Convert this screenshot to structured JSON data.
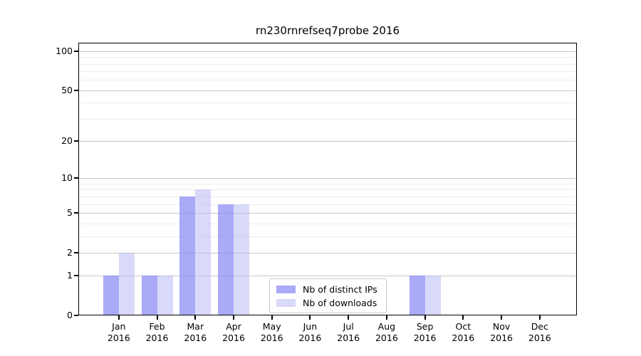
{
  "chart_data": {
    "type": "bar",
    "title": "rn230rnrefseq7probe 2016",
    "categories": [
      "Jan 2016",
      "Feb 2016",
      "Mar 2016",
      "Apr 2016",
      "May 2016",
      "Jun 2016",
      "Jul 2016",
      "Aug 2016",
      "Sep 2016",
      "Oct 2016",
      "Nov 2016",
      "Dec 2016"
    ],
    "series": [
      {
        "name": "Nb of distinct IPs",
        "key": "distinct-ips",
        "color": "#aaaaf8",
        "fill": "rgba(134,134,245,0.7)",
        "values": [
          1,
          1,
          7,
          6,
          0,
          0,
          0,
          0,
          1,
          0,
          0,
          0
        ]
      },
      {
        "name": "Nb of downloads",
        "key": "downloads",
        "color": "#d9d9fa",
        "fill": "rgba(179,179,245,0.5)",
        "values": [
          2,
          1,
          8,
          6,
          0,
          0,
          0,
          0,
          1,
          0,
          0,
          0
        ]
      }
    ],
    "yscale": "log1p",
    "ylim": [
      0,
      116
    ],
    "y_axis": {
      "major_ticks": [
        0,
        1,
        2,
        5,
        10,
        20,
        50,
        100
      ],
      "minor_gridlines": [
        3,
        4,
        6,
        7,
        8,
        9,
        30,
        40,
        60,
        70,
        80,
        90
      ]
    },
    "grid": {
      "on": true,
      "major_color": "#c8c8c8",
      "minor_color": "#ececec"
    },
    "legend_position": "lower center inside",
    "axis_color": "#000000",
    "background_color": "#ffffff"
  }
}
